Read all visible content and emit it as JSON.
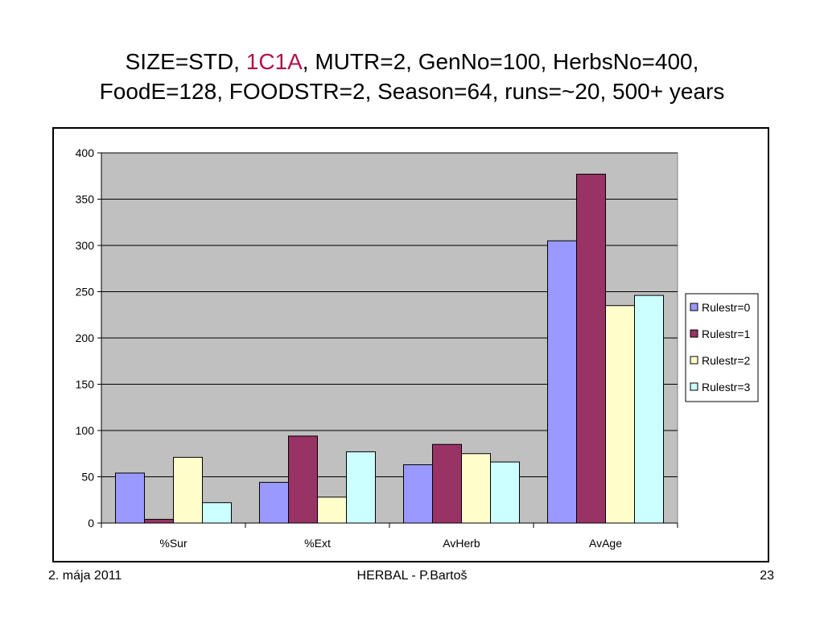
{
  "slide": {
    "title_line1_pre": "SIZE=STD, ",
    "title_line1_accent": "1C1A",
    "title_line1_post": ", MUTR=2, GenNo=100, HerbsNo=400,",
    "title_line2": "FoodE=128, FOODSTR=2, Season=64, runs=~20, 500+ years"
  },
  "footer": {
    "date": "2. mája 2011",
    "center": "HERBAL - P.Bartoš",
    "page": "23"
  },
  "colors": {
    "accent": "#b0124a",
    "plot_bg": "#c0c0c0"
  },
  "chart_data": {
    "type": "bar",
    "title": "",
    "xlabel": "",
    "ylabel": "",
    "categories": [
      "%Sur",
      "%Ext",
      "AvHerb",
      "AvAge"
    ],
    "ylim": [
      0,
      400
    ],
    "yticks": [
      0,
      50,
      100,
      150,
      200,
      250,
      300,
      350,
      400
    ],
    "grid": true,
    "legend_position": "right",
    "series": [
      {
        "name": "Rulestr=0",
        "color": "#9999ff",
        "values": [
          54,
          44,
          63,
          305
        ]
      },
      {
        "name": "Rulestr=1",
        "color": "#993366",
        "values": [
          4,
          94,
          85,
          377
        ]
      },
      {
        "name": "Rulestr=2",
        "color": "#ffffcc",
        "values": [
          71,
          28,
          75,
          235
        ]
      },
      {
        "name": "Rulestr=3",
        "color": "#ccffff",
        "values": [
          22,
          77,
          66,
          246
        ]
      }
    ]
  }
}
